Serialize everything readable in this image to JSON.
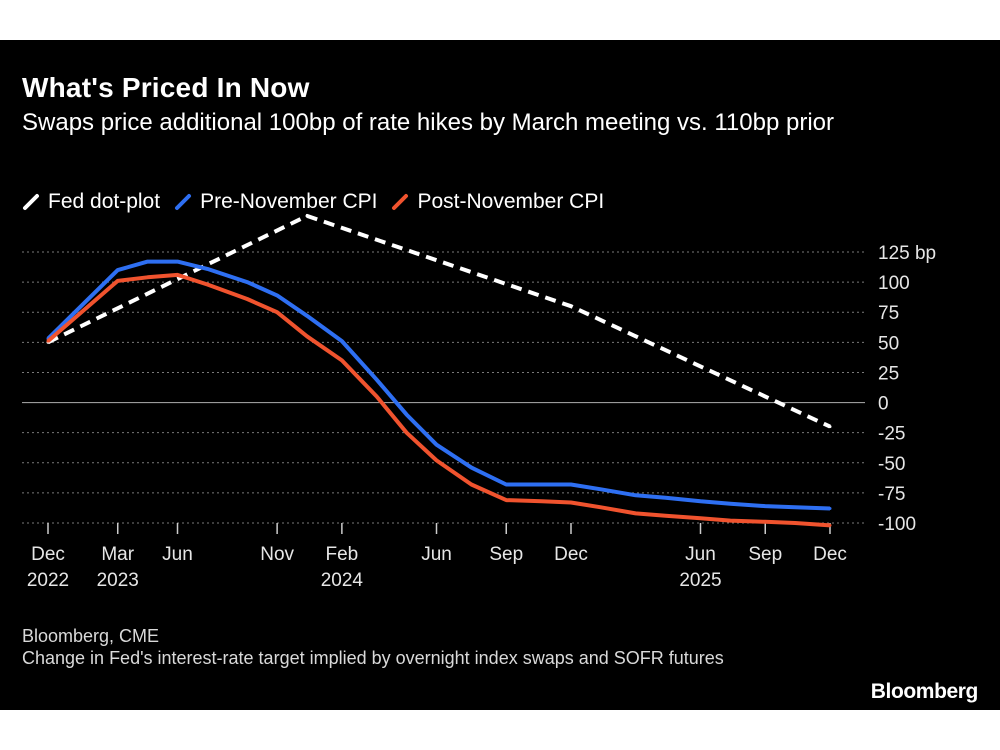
{
  "header": {
    "title": "What's Priced In Now",
    "subtitle": "Swaps price additional 100bp of rate hikes by March meeting vs. 110bp prior"
  },
  "footer": {
    "source_line": "Bloomberg, CME",
    "note": "Change in Fed's interest-rate target implied by overnight index swaps and SOFR futures",
    "brand": "Bloomberg"
  },
  "colors": {
    "background": "#000000",
    "fed_dot_plot": "#ffffff",
    "pre_november_cpi": "#2e6ff2",
    "post_november_cpi": "#f0532e",
    "gridline": "#8a8a8a"
  },
  "chart_data": {
    "type": "line",
    "title": "What's Priced In Now",
    "subtitle": "Swaps price additional 100bp of rate hikes by March meeting vs. 110bp prior",
    "x_axis": {
      "type": "date",
      "range": [
        "2022-12-14",
        "2025-12-17"
      ],
      "ticks": [
        {
          "date": "2022-12-14",
          "label": "Dec",
          "year": "2022"
        },
        {
          "date": "2023-03-22",
          "label": "Mar",
          "year": "2023"
        },
        {
          "date": "2023-06-14",
          "label": "Jun",
          "year": ""
        },
        {
          "date": "2023-11-01",
          "label": "Nov",
          "year": ""
        },
        {
          "date": "2024-01-31",
          "label": "Feb",
          "year": "2024"
        },
        {
          "date": "2024-06-12",
          "label": "Jun",
          "year": ""
        },
        {
          "date": "2024-09-18",
          "label": "Sep",
          "year": ""
        },
        {
          "date": "2024-12-18",
          "label": "Dec",
          "year": ""
        },
        {
          "date": "2025-06-18",
          "label": "Jun",
          "year": "2025"
        },
        {
          "date": "2025-09-17",
          "label": "Sep",
          "year": ""
        },
        {
          "date": "2025-12-17",
          "label": "Dec",
          "year": ""
        }
      ]
    },
    "y_axis": {
      "unit": "bp",
      "position": "right",
      "range": [
        -100,
        125
      ],
      "ticks": [
        {
          "value": 125,
          "label": "125 bp"
        },
        {
          "value": 100,
          "label": "100"
        },
        {
          "value": 75,
          "label": "75"
        },
        {
          "value": 50,
          "label": "50"
        },
        {
          "value": 25,
          "label": "25"
        },
        {
          "value": 0,
          "label": "0"
        },
        {
          "value": -25,
          "label": "-25"
        },
        {
          "value": -50,
          "label": "-50"
        },
        {
          "value": -75,
          "label": "-75"
        },
        {
          "value": -100,
          "label": "-100"
        }
      ]
    },
    "grid": "horizontal dotted",
    "legend_placement": "top-left",
    "series": [
      {
        "name": "Fed dot-plot",
        "style": "dashed",
        "color": "#ffffff",
        "points": [
          [
            "2022-12-14",
            50
          ],
          [
            "2023-12-13",
            155
          ],
          [
            "2024-12-18",
            80
          ],
          [
            "2025-12-17",
            -20
          ]
        ]
      },
      {
        "name": "Pre-November CPI",
        "style": "solid",
        "color": "#2e6ff2",
        "points": [
          [
            "2022-12-14",
            53
          ],
          [
            "2023-03-22",
            110
          ],
          [
            "2023-05-03",
            117
          ],
          [
            "2023-06-14",
            117
          ],
          [
            "2023-07-26",
            111
          ],
          [
            "2023-09-20",
            100
          ],
          [
            "2023-11-01",
            89
          ],
          [
            "2023-12-13",
            72
          ],
          [
            "2024-01-31",
            51
          ],
          [
            "2024-03-20",
            19
          ],
          [
            "2024-05-01",
            -10
          ],
          [
            "2024-06-12",
            -35
          ],
          [
            "2024-07-31",
            -54
          ],
          [
            "2024-09-18",
            -68
          ],
          [
            "2024-11-07",
            -68
          ],
          [
            "2024-12-18",
            -68
          ],
          [
            "2025-01-29",
            -72
          ],
          [
            "2025-03-19",
            -77
          ],
          [
            "2025-04-30",
            -79
          ],
          [
            "2025-06-18",
            -82
          ],
          [
            "2025-07-30",
            -84
          ],
          [
            "2025-09-17",
            -86
          ],
          [
            "2025-10-29",
            -87
          ],
          [
            "2025-12-17",
            -88
          ]
        ]
      },
      {
        "name": "Post-November CPI",
        "style": "solid",
        "color": "#f0532e",
        "points": [
          [
            "2022-12-14",
            51
          ],
          [
            "2023-03-22",
            101
          ],
          [
            "2023-05-03",
            104
          ],
          [
            "2023-06-14",
            106
          ],
          [
            "2023-07-26",
            98
          ],
          [
            "2023-09-20",
            86
          ],
          [
            "2023-11-01",
            75
          ],
          [
            "2023-12-13",
            55
          ],
          [
            "2024-01-31",
            35
          ],
          [
            "2024-03-20",
            5
          ],
          [
            "2024-05-01",
            -25
          ],
          [
            "2024-06-12",
            -48
          ],
          [
            "2024-07-31",
            -68
          ],
          [
            "2024-09-18",
            -81
          ],
          [
            "2024-11-07",
            -82
          ],
          [
            "2024-12-18",
            -83
          ],
          [
            "2025-01-29",
            -87
          ],
          [
            "2025-03-19",
            -92
          ],
          [
            "2025-04-30",
            -94
          ],
          [
            "2025-06-18",
            -96
          ],
          [
            "2025-07-30",
            -98
          ],
          [
            "2025-09-17",
            -99
          ],
          [
            "2025-10-29",
            -100
          ],
          [
            "2025-12-17",
            -102
          ]
        ]
      }
    ]
  }
}
